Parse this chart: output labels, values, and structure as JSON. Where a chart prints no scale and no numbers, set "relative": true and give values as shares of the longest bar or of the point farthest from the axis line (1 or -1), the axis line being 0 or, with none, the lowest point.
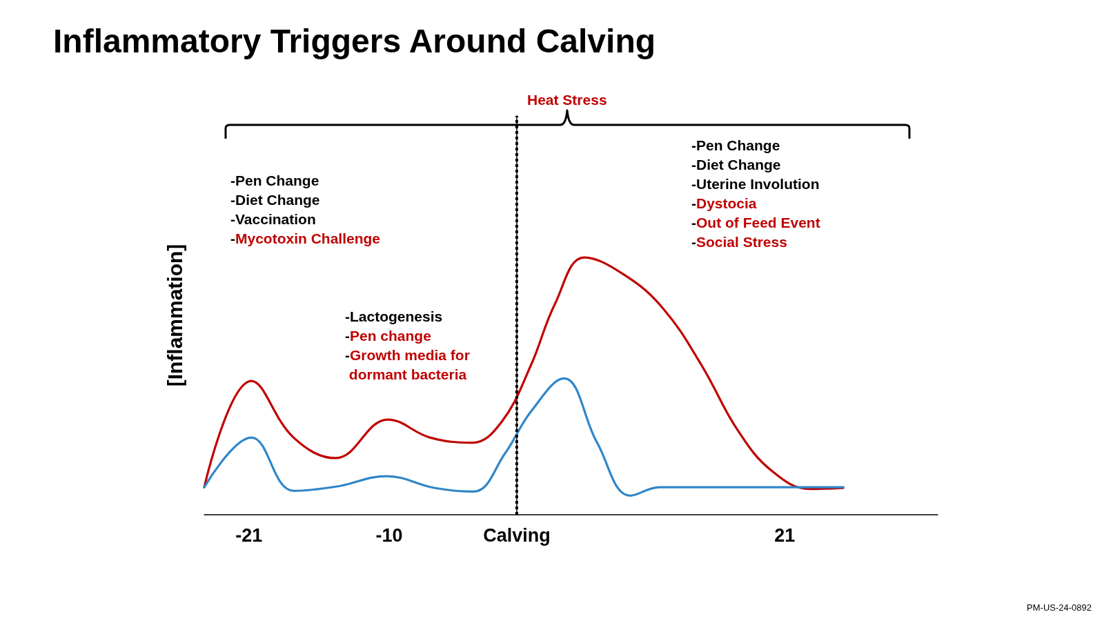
{
  "chart_data": {
    "type": "line",
    "title": "Inflammatory Triggers Around Calving",
    "ylabel": "[Inflammation]",
    "relative": true,
    "xlim": [
      -24.5,
      33
    ],
    "xticks": [
      -21,
      -10,
      {
        "value": 0,
        "label": "Calving"
      },
      21
    ],
    "series": [
      {
        "color": "#c00000",
        "x": [
          -24.5,
          -20.8,
          -17.5,
          -14.2,
          -10.1,
          -6.8,
          -3.5,
          -1.2,
          1.1,
          3.0,
          5.3,
          8.5,
          11.5,
          14.5,
          17.3,
          20.0,
          23.0,
          25.6
        ],
        "values": [
          0.107,
          0.52,
          0.3,
          0.22,
          0.37,
          0.3,
          0.28,
          0.36,
          0.58,
          0.82,
          1,
          0.93,
          0.8,
          0.58,
          0.33,
          0.17,
          0.1,
          0.104
        ]
      },
      {
        "color": "#2f86c8",
        "x": [
          -24.5,
          -20.8,
          -17.5,
          -14.1,
          -10.2,
          -6.4,
          -3.4,
          -0.9,
          1.1,
          3.7,
          6.3,
          8.9,
          11.2,
          25.6
        ],
        "values": [
          0.107,
          0.3,
          0.093,
          0.11,
          0.15,
          0.104,
          0.09,
          0.24,
          0.4,
          0.53,
          0.28,
          0.074,
          0.107,
          0.107
        ]
      }
    ],
    "ref_lines": [
      {
        "axis": "x",
        "value": 0,
        "color": "#000000",
        "line_style": "dotted"
      }
    ],
    "annotations": [
      "Heat Stress",
      "-Pen Change\n-Diet Change\n-Vaccination\n-Mycotoxin Challenge",
      "-Lactogenesis\n-Pen change\n-Growth media for\n dormant bacteria",
      "-Pen Change\n-Diet Change\n-Uterine Involution\n-Dystocia\n-Out of Feed Event\n-Social Stress",
      "PM-US-24-0892"
    ],
    "grid": false,
    "marker": "none",
    "line_style": "solid"
  }
}
